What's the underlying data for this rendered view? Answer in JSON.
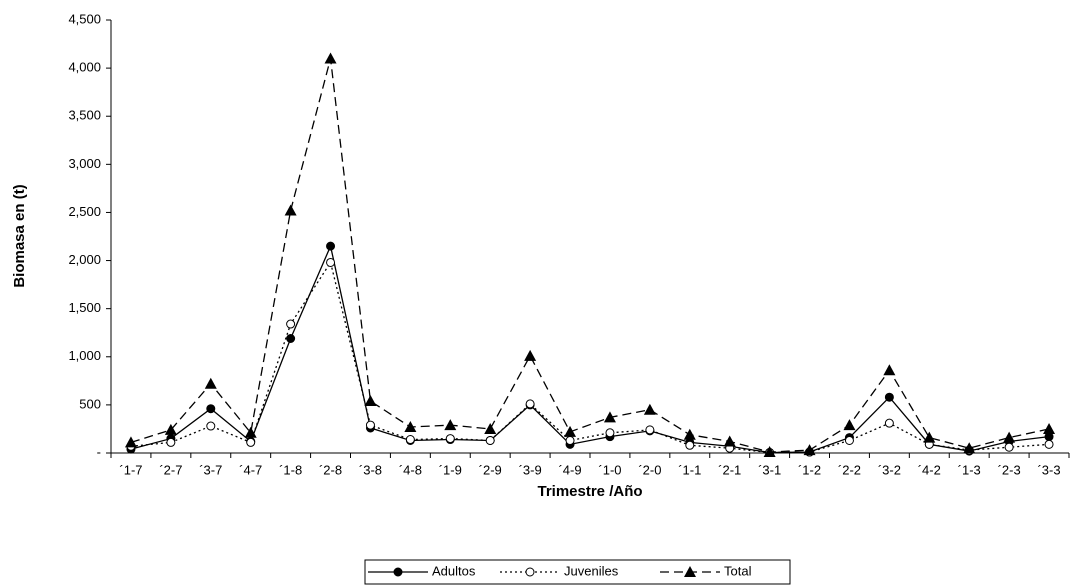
{
  "chart_data": {
    "type": "line",
    "y_label": "Biomasa en (t)",
    "x_label": "Trimestre /Año",
    "categories": [
      "´1-7",
      "´2-7",
      "´3-7",
      "´4-7",
      "´1-8",
      "´2-8",
      "´3-8",
      "´4-8",
      "´1-9",
      "´2-9",
      "´3-9",
      "´4-9",
      "´1-0",
      "´2-0",
      "´1-1",
      "´2-1",
      "´3-1",
      "´1-2",
      "´2-2",
      "´3-2",
      "´4-2",
      "´1-3",
      "´2-3",
      "´3-3"
    ],
    "series": [
      {
        "name": "Adultos",
        "color": "#000000",
        "dash": "solid",
        "marker": "filled-circle",
        "values": [
          40,
          150,
          460,
          120,
          1190,
          2150,
          260,
          130,
          140,
          130,
          500,
          90,
          170,
          230,
          110,
          70,
          5,
          10,
          160,
          580,
          90,
          20,
          120,
          170
        ]
      },
      {
        "name": "Juveniles",
        "color": "#000000",
        "dash": "dotted",
        "marker": "open-circle",
        "values": [
          70,
          110,
          280,
          110,
          1340,
          1980,
          290,
          140,
          150,
          130,
          510,
          130,
          210,
          240,
          80,
          50,
          5,
          10,
          130,
          310,
          90,
          30,
          60,
          90
        ]
      },
      {
        "name": "Total",
        "color": "#000000",
        "dash": "dashed",
        "marker": "filled-triangle",
        "values": [
          110,
          240,
          720,
          210,
          2520,
          4100,
          540,
          270,
          290,
          250,
          1010,
          220,
          370,
          450,
          190,
          120,
          10,
          30,
          290,
          860,
          160,
          50,
          160,
          250
        ]
      }
    ],
    "ylim": [
      0,
      4500
    ],
    "yticks": [
      {
        "value": 0,
        "label": "-"
      },
      500,
      {
        "value": 1000,
        "label": "1,000"
      },
      {
        "value": 1500,
        "label": "1,500"
      },
      {
        "value": 2000,
        "label": "2,000"
      },
      {
        "value": 2500,
        "label": "2,500"
      },
      {
        "value": 3000,
        "label": "3,000"
      },
      {
        "value": 3500,
        "label": "3,500"
      },
      {
        "value": 4000,
        "label": "4,000"
      },
      {
        "value": 4500,
        "label": "4,500"
      }
    ],
    "grid": false,
    "legend": "bottom"
  }
}
